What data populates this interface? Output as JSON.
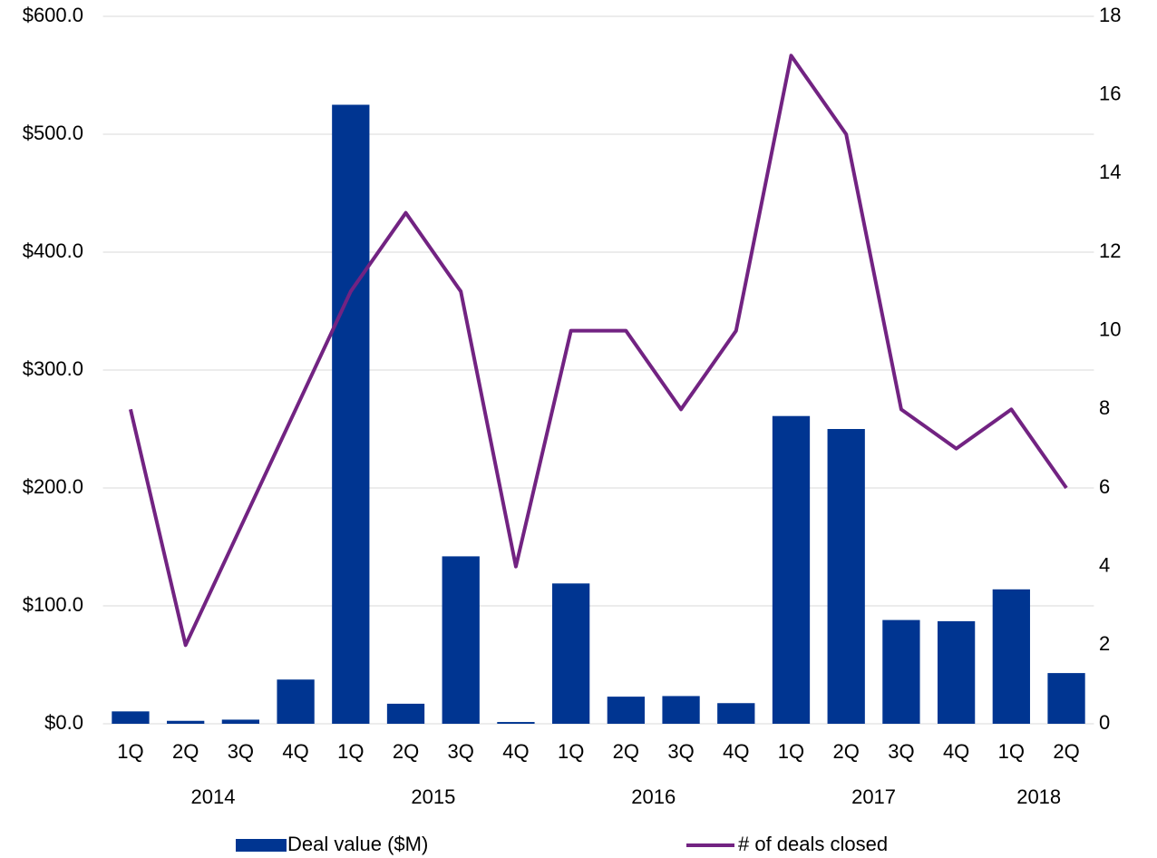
{
  "chart_data": {
    "type": "bar",
    "categories": [
      "1Q",
      "2Q",
      "3Q",
      "4Q",
      "1Q",
      "2Q",
      "3Q",
      "4Q",
      "1Q",
      "2Q",
      "3Q",
      "4Q",
      "1Q",
      "2Q",
      "3Q",
      "4Q",
      "1Q",
      "2Q"
    ],
    "category_groups": [
      "2014",
      null,
      null,
      null,
      "2015",
      null,
      null,
      null,
      "2016",
      null,
      null,
      null,
      "2017",
      null,
      null,
      null,
      "2018",
      null
    ],
    "series": [
      {
        "name": "Deal value ($M)",
        "type": "bar",
        "color": "#003591",
        "values": [
          10.5,
          2.5,
          3.5,
          37.5,
          525,
          17,
          142,
          1.5,
          119,
          23,
          23.5,
          17.5,
          261,
          250,
          88,
          87,
          114,
          43
        ]
      },
      {
        "name": "# of deals closed",
        "type": "line",
        "axis": "y2",
        "color": "#722382",
        "values": [
          8,
          2,
          5,
          8,
          11,
          13,
          11,
          4,
          10,
          10,
          8,
          10,
          17,
          15,
          8,
          7,
          8,
          6
        ]
      }
    ],
    "ylim": [
      0,
      600
    ],
    "yticks": [
      {
        "value": 0,
        "label": "$0.0"
      },
      {
        "value": 100,
        "label": "$100.0"
      },
      {
        "value": 200,
        "label": "$200.0"
      },
      {
        "value": 300,
        "label": "$300.0"
      },
      {
        "value": 400,
        "label": "$400.0"
      },
      {
        "value": 500,
        "label": "$500.0"
      },
      {
        "value": 600,
        "label": "$600.0"
      }
    ],
    "y2lim": [
      0,
      18
    ],
    "y2ticks": [
      0,
      2,
      4,
      6,
      8,
      10,
      12,
      14,
      16,
      18
    ],
    "grid": true,
    "legend": "bottom"
  }
}
